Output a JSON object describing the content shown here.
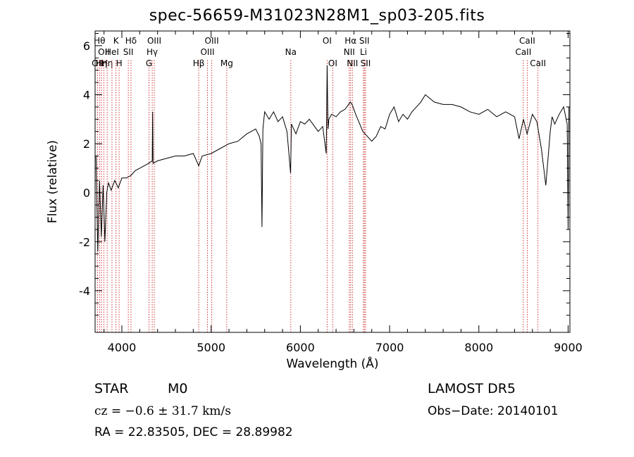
{
  "chart_data": {
    "type": "line",
    "title": "spec-56659-M31023N28M1_sp03-205.fits",
    "xlabel": "Wavelength (Å)",
    "ylabel": "Flux (relative)",
    "xlim": [
      3700,
      9020
    ],
    "ylim": [
      -5.7,
      6.6
    ],
    "xticks": [
      "4000",
      "5000",
      "6000",
      "7000",
      "8000",
      "9000"
    ],
    "yticks": [
      "-4",
      "-2",
      "0",
      "2",
      "4",
      "6"
    ],
    "grid": false,
    "series": [
      {
        "x": [
          3710,
          3730,
          3750,
          3770,
          3790,
          3810,
          3830,
          3850,
          3880,
          3920,
          3960,
          4000,
          4050,
          4100,
          4150,
          4200,
          4250,
          4300,
          4340,
          4345,
          4350,
          4400,
          4500,
          4600,
          4700,
          4800,
          4861,
          4900,
          5000,
          5100,
          5200,
          5300,
          5400,
          5500,
          5540,
          5560,
          5570,
          5580,
          5600,
          5650,
          5700,
          5750,
          5800,
          5850,
          5890,
          5900,
          5950,
          6000,
          6050,
          6100,
          6200,
          6250,
          6290,
          6300,
          6305,
          6310,
          6320,
          6350,
          6400,
          6450,
          6500,
          6560,
          6580,
          6620,
          6700,
          6750,
          6800,
          6850,
          6900,
          6950,
          7000,
          7050,
          7100,
          7150,
          7200,
          7250,
          7300,
          7350,
          7400,
          7500,
          7600,
          7700,
          7800,
          7900,
          8000,
          8100,
          8200,
          8300,
          8400,
          8450,
          8500,
          8540,
          8600,
          8650,
          8700,
          8750,
          8800,
          8820,
          8850,
          8900,
          8950,
          8990,
          9000,
          9010
        ],
        "y": [
          1.5,
          -2.4,
          0.5,
          -1.8,
          0.3,
          -2.0,
          0.0,
          0.4,
          0.1,
          0.5,
          0.2,
          0.6,
          0.6,
          0.7,
          0.9,
          1.0,
          1.1,
          1.2,
          1.3,
          3.3,
          1.2,
          1.3,
          1.4,
          1.5,
          1.5,
          1.6,
          1.1,
          1.5,
          1.6,
          1.8,
          2.0,
          2.1,
          2.4,
          2.6,
          2.3,
          2.0,
          -1.4,
          2.6,
          3.3,
          3.0,
          3.3,
          2.9,
          3.1,
          2.5,
          0.8,
          2.8,
          2.4,
          2.9,
          2.8,
          3.0,
          2.5,
          2.7,
          1.6,
          5.2,
          3.9,
          2.6,
          3.0,
          3.2,
          3.1,
          3.3,
          3.4,
          3.7,
          3.6,
          3.2,
          2.5,
          2.3,
          2.1,
          2.3,
          2.7,
          2.6,
          3.2,
          3.5,
          2.9,
          3.2,
          3.0,
          3.3,
          3.5,
          3.7,
          4.0,
          3.7,
          3.6,
          3.6,
          3.5,
          3.3,
          3.2,
          3.4,
          3.1,
          3.3,
          3.1,
          2.2,
          3.0,
          2.4,
          3.2,
          2.9,
          1.8,
          0.3,
          2.5,
          3.1,
          2.8,
          3.2,
          3.5,
          2.8,
          -1.5,
          3.5
        ]
      }
    ],
    "lines": [
      {
        "wl": 3727,
        "label": "OII",
        "row": 3
      },
      {
        "wl": 3750,
        "label": "Hθ",
        "row": 1
      },
      {
        "wl": 3771,
        "label": "Hη",
        "row": 3
      },
      {
        "wl": 3798,
        "label": "OII",
        "row": 2
      },
      {
        "wl": 3835,
        "label": "Hη",
        "row": 3
      },
      {
        "wl": 3889,
        "label": "HeI",
        "row": 2
      },
      {
        "wl": 3934,
        "label": "K",
        "row": 1
      },
      {
        "wl": 3969,
        "label": "H",
        "row": 3
      },
      {
        "wl": 4072,
        "label": "SII",
        "row": 2
      },
      {
        "wl": 4102,
        "label": "Hδ",
        "row": 1
      },
      {
        "wl": 4304,
        "label": "G",
        "row": 3
      },
      {
        "wl": 4340,
        "label": "Hγ",
        "row": 2
      },
      {
        "wl": 4363,
        "label": "OIII",
        "row": 1
      },
      {
        "wl": 4861,
        "label": "Hβ",
        "row": 3
      },
      {
        "wl": 4959,
        "label": "OIII",
        "row": 2
      },
      {
        "wl": 5007,
        "label": "OIII",
        "row": 1
      },
      {
        "wl": 5175,
        "label": "Mg",
        "row": 3
      },
      {
        "wl": 5893,
        "label": "Na",
        "row": 2
      },
      {
        "wl": 6300,
        "label": "OI",
        "row": 1
      },
      {
        "wl": 6363,
        "label": "OI",
        "row": 3
      },
      {
        "wl": 6548,
        "label": "NII",
        "row": 2
      },
      {
        "wl": 6563,
        "label": "Hα",
        "row": 1
      },
      {
        "wl": 6583,
        "label": "NII",
        "row": 3
      },
      {
        "wl": 6707,
        "label": "Li",
        "row": 2
      },
      {
        "wl": 6717,
        "label": "SII",
        "row": 1
      },
      {
        "wl": 6731,
        "label": "SII",
        "row": 3
      },
      {
        "wl": 8498,
        "label": "CaII",
        "row": 2
      },
      {
        "wl": 8542,
        "label": "CaII",
        "row": 1
      },
      {
        "wl": 8662,
        "label": "CaII",
        "row": 3
      }
    ]
  },
  "info": {
    "class": "STAR",
    "subclass": "M0",
    "survey": "LAMOST DR5",
    "cz": "cz = −0.6 ± 31.7 km/s",
    "obsdate": "Obs−Date: 20140101",
    "coords": "RA =  22.83505, DEC =  28.89982"
  }
}
